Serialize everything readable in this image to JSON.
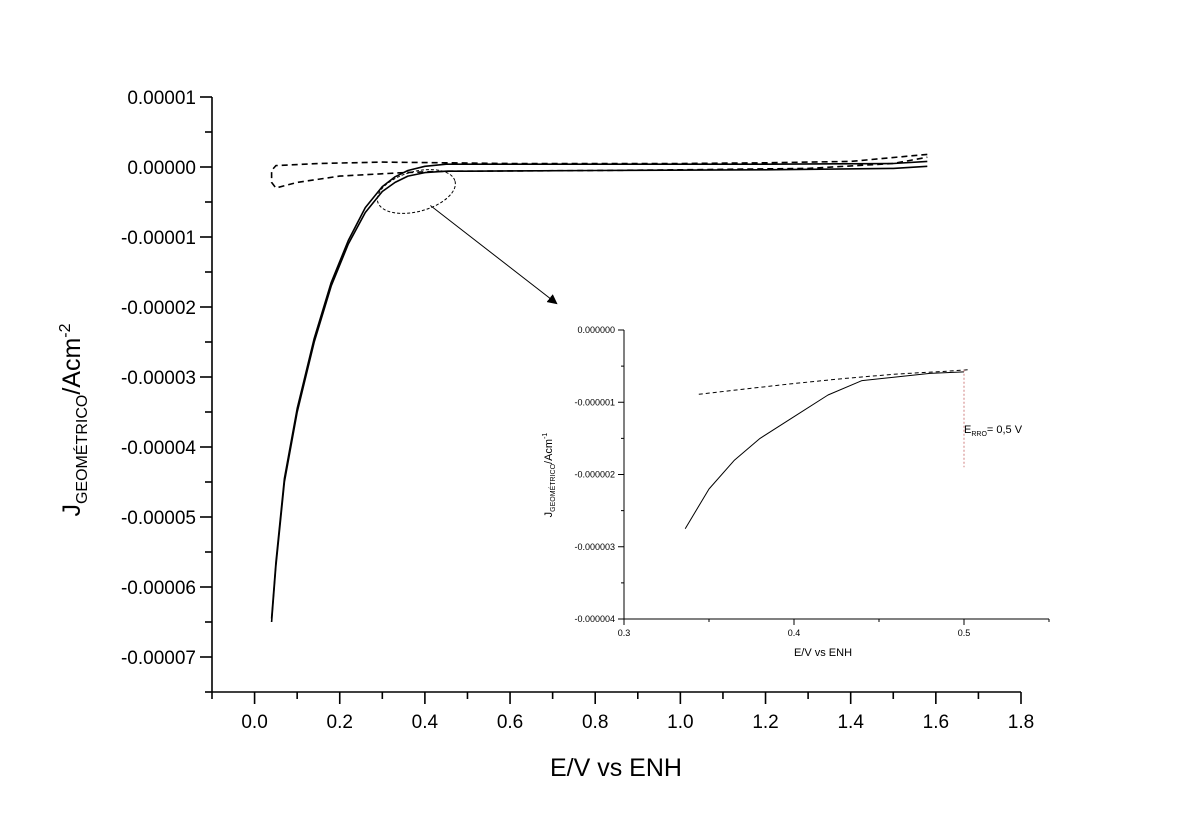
{
  "chart_data": [
    {
      "type": "line",
      "xlabel": "E/V vs ENH",
      "ylabel": {
        "main": "J",
        "sub": "GEOMÉTRICO",
        "unit": "/Acm",
        "sup": "-2"
      },
      "xlim": [
        -0.1,
        1.8
      ],
      "ylim": [
        -7.5e-05,
        1e-05
      ],
      "xticks": [
        {
          "v": 0.0,
          "label": "0.0"
        },
        {
          "v": 0.2,
          "label": "0.2"
        },
        {
          "v": 0.4,
          "label": "0.4"
        },
        {
          "v": 0.6,
          "label": "0.6"
        },
        {
          "v": 0.8,
          "label": "0.8"
        },
        {
          "v": 1.0,
          "label": "1.0"
        },
        {
          "v": 1.2,
          "label": "1.2"
        },
        {
          "v": 1.4,
          "label": "1.4"
        },
        {
          "v": 1.6,
          "label": "1.6"
        },
        {
          "v": 1.8,
          "label": "1.8"
        }
      ],
      "yticks": [
        {
          "v": 1e-05,
          "label": "0.00001"
        },
        {
          "v": 0.0,
          "label": "0.00000"
        },
        {
          "v": -1e-05,
          "label": "-0.00001"
        },
        {
          "v": -2e-05,
          "label": "-0.00002"
        },
        {
          "v": -3e-05,
          "label": "-0.00003"
        },
        {
          "v": -4e-05,
          "label": "-0.00004"
        },
        {
          "v": -5e-05,
          "label": "-0.00005"
        },
        {
          "v": -6e-05,
          "label": "-0.00006"
        },
        {
          "v": -7e-05,
          "label": "-0.00007"
        }
      ],
      "series": [
        {
          "style": "solid",
          "x": [
            0.04,
            0.05,
            0.07,
            0.1,
            0.14,
            0.18,
            0.22,
            0.26,
            0.3,
            0.33,
            0.36,
            0.4,
            0.45,
            0.5,
            0.8,
            1.2,
            1.5,
            1.58
          ],
          "y": [
            -6.5e-05,
            -5.7e-05,
            -4.5e-05,
            -3.5e-05,
            -2.5e-05,
            -1.7e-05,
            -1.1e-05,
            -6.5e-06,
            -3.5e-06,
            -2.2e-06,
            -1.3e-06,
            -8e-07,
            -6e-07,
            -6e-07,
            -5e-07,
            -4e-07,
            -2e-07,
            1e-07
          ]
        },
        {
          "style": "solid",
          "x": [
            0.04,
            0.05,
            0.07,
            0.1,
            0.14,
            0.18,
            0.22,
            0.26,
            0.3,
            0.33,
            0.36,
            0.4,
            0.45,
            0.5,
            0.8,
            1.2,
            1.5,
            1.58
          ],
          "y": [
            -6.45e-05,
            -5.65e-05,
            -4.45e-05,
            -3.45e-05,
            -2.45e-05,
            -1.65e-05,
            -1.05e-05,
            -5.8e-06,
            -2.8e-06,
            -1.4e-06,
            -5e-07,
            1e-07,
            4e-07,
            4e-07,
            4e-07,
            4e-07,
            5e-07,
            8e-07
          ]
        },
        {
          "style": "dashed",
          "x": [
            1.58,
            1.4,
            1.2,
            1.0,
            0.8,
            0.6,
            0.45,
            0.3,
            0.15,
            0.05,
            0.04,
            0.04,
            0.05,
            0.1,
            0.2,
            0.35,
            0.45,
            0.5,
            0.8,
            1.0,
            1.3,
            1.5,
            1.58
          ],
          "y": [
            1.8e-06,
            8e-07,
            6e-07,
            5e-07,
            5e-07,
            5e-07,
            6e-07,
            7e-07,
            5e-07,
            2e-07,
            -5e-07,
            -2.2e-06,
            -3e-06,
            -2.2e-06,
            -1.3e-06,
            -8e-07,
            -6e-07,
            -6e-07,
            -5e-07,
            -4e-07,
            -2e-07,
            5e-07,
            1.4e-06
          ]
        }
      ],
      "annotation": {
        "ellipse_center": [
          0.38,
          -3.5e-06
        ],
        "arrow_to_inset": true
      }
    },
    {
      "type": "line",
      "xlabel": "E/V vs ENH",
      "ylabel": {
        "main": "J",
        "sub": "GEOMÉTRICO",
        "unit": "/Acm",
        "sup": "-1"
      },
      "xlim": [
        0.3,
        0.55
      ],
      "ylim": [
        -4e-06,
        0.0
      ],
      "xticks": [
        {
          "v": 0.3,
          "label": "0.3"
        },
        {
          "v": 0.4,
          "label": "0.4"
        },
        {
          "v": 0.5,
          "label": "0.5"
        }
      ],
      "yticks": [
        {
          "v": 0.0,
          "label": "0.000000"
        },
        {
          "v": -1e-06,
          "label": "-0.000001"
        },
        {
          "v": -2e-06,
          "label": "-0.000002"
        },
        {
          "v": -3e-06,
          "label": "-0.000003"
        },
        {
          "v": -4e-06,
          "label": "-0.000004"
        }
      ],
      "series": [
        {
          "style": "solid",
          "x": [
            0.336,
            0.35,
            0.365,
            0.38,
            0.4,
            0.42,
            0.44,
            0.46,
            0.48,
            0.5
          ],
          "y": [
            -2.75e-06,
            -2.2e-06,
            -1.8e-06,
            -1.5e-06,
            -1.2e-06,
            -9e-07,
            -7e-07,
            -6.5e-07,
            -6e-07,
            -5.8e-07
          ]
        },
        {
          "style": "dashed",
          "x": [
            0.344,
            0.37,
            0.4,
            0.43,
            0.46,
            0.49,
            0.503
          ],
          "y": [
            -8.9e-07,
            -8.2e-07,
            -7.4e-07,
            -6.7e-07,
            -6.1e-07,
            -5.7e-07,
            -5.5e-07
          ]
        }
      ],
      "marker": {
        "x": 0.5,
        "label_main": "E",
        "label_sub": "RRO",
        "label_rest": "= 0,5 V"
      }
    }
  ]
}
